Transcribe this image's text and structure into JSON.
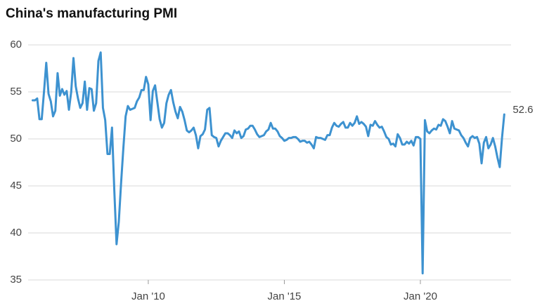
{
  "chart_data": {
    "type": "line",
    "title": "China's manufacturing PMI",
    "color": "#3d92d0",
    "grid": true,
    "ylim": [
      35,
      60
    ],
    "yticks": [
      35,
      40,
      45,
      50,
      55,
      60
    ],
    "xlim": [
      "2005-08",
      "2023-05"
    ],
    "xticks": [
      {
        "value": "2010-01",
        "label": "Jan '10"
      },
      {
        "value": "2015-01",
        "label": "Jan '15"
      },
      {
        "value": "2020-01",
        "label": "Jan '20"
      }
    ],
    "x": [
      "2005-10",
      "2005-11",
      "2005-12",
      "2006-01",
      "2006-02",
      "2006-03",
      "2006-04",
      "2006-05",
      "2006-06",
      "2006-07",
      "2006-08",
      "2006-09",
      "2006-10",
      "2006-11",
      "2006-12",
      "2007-01",
      "2007-02",
      "2007-03",
      "2007-04",
      "2007-05",
      "2007-06",
      "2007-07",
      "2007-08",
      "2007-09",
      "2007-10",
      "2007-11",
      "2007-12",
      "2008-01",
      "2008-02",
      "2008-03",
      "2008-04",
      "2008-05",
      "2008-06",
      "2008-07",
      "2008-08",
      "2008-09",
      "2008-10",
      "2008-11",
      "2008-12",
      "2009-01",
      "2009-02",
      "2009-03",
      "2009-04",
      "2009-05",
      "2009-06",
      "2009-07",
      "2009-08",
      "2009-09",
      "2009-10",
      "2009-11",
      "2009-12",
      "2010-01",
      "2010-02",
      "2010-03",
      "2010-04",
      "2010-05",
      "2010-06",
      "2010-07",
      "2010-08",
      "2010-09",
      "2010-10",
      "2010-11",
      "2010-12",
      "2011-01",
      "2011-02",
      "2011-03",
      "2011-04",
      "2011-05",
      "2011-06",
      "2011-07",
      "2011-08",
      "2011-09",
      "2011-10",
      "2011-11",
      "2011-12",
      "2012-01",
      "2012-02",
      "2012-03",
      "2012-04",
      "2012-05",
      "2012-06",
      "2012-07",
      "2012-08",
      "2012-09",
      "2012-10",
      "2012-11",
      "2012-12",
      "2013-01",
      "2013-02",
      "2013-03",
      "2013-04",
      "2013-05",
      "2013-06",
      "2013-07",
      "2013-08",
      "2013-09",
      "2013-10",
      "2013-11",
      "2013-12",
      "2014-01",
      "2014-02",
      "2014-03",
      "2014-04",
      "2014-05",
      "2014-06",
      "2014-07",
      "2014-08",
      "2014-09",
      "2014-10",
      "2014-11",
      "2014-12",
      "2015-01",
      "2015-02",
      "2015-03",
      "2015-04",
      "2015-05",
      "2015-06",
      "2015-07",
      "2015-08",
      "2015-09",
      "2015-10",
      "2015-11",
      "2015-12",
      "2016-01",
      "2016-02",
      "2016-03",
      "2016-04",
      "2016-05",
      "2016-06",
      "2016-07",
      "2016-08",
      "2016-09",
      "2016-10",
      "2016-11",
      "2016-12",
      "2017-01",
      "2017-02",
      "2017-03",
      "2017-04",
      "2017-05",
      "2017-06",
      "2017-07",
      "2017-08",
      "2017-09",
      "2017-10",
      "2017-11",
      "2017-12",
      "2018-01",
      "2018-02",
      "2018-03",
      "2018-04",
      "2018-05",
      "2018-06",
      "2018-07",
      "2018-08",
      "2018-09",
      "2018-10",
      "2018-11",
      "2018-12",
      "2019-01",
      "2019-02",
      "2019-03",
      "2019-04",
      "2019-05",
      "2019-06",
      "2019-07",
      "2019-08",
      "2019-09",
      "2019-10",
      "2019-11",
      "2019-12",
      "2020-01",
      "2020-02",
      "2020-03",
      "2020-04",
      "2020-05",
      "2020-06",
      "2020-07",
      "2020-08",
      "2020-09",
      "2020-10",
      "2020-11",
      "2020-12",
      "2021-01",
      "2021-02",
      "2021-03",
      "2021-04",
      "2021-05",
      "2021-06",
      "2021-07",
      "2021-08",
      "2021-09",
      "2021-10",
      "2021-11",
      "2021-12",
      "2022-01",
      "2022-02",
      "2022-03",
      "2022-04",
      "2022-05",
      "2022-06",
      "2022-07",
      "2022-08",
      "2022-09",
      "2022-10",
      "2022-11",
      "2022-12",
      "2023-01",
      "2023-02"
    ],
    "values": [
      54.1,
      54.1,
      54.3,
      52.1,
      52.1,
      55.0,
      58.1,
      54.8,
      54.0,
      52.4,
      53.0,
      57.0,
      54.6,
      55.3,
      54.7,
      55.1,
      53.1,
      55.0,
      58.6,
      55.6,
      54.3,
      53.3,
      53.8,
      56.1,
      53.1,
      55.4,
      55.3,
      53.0,
      53.8,
      58.3,
      59.2,
      53.3,
      52.0,
      48.4,
      48.4,
      51.2,
      44.6,
      38.8,
      41.2,
      45.3,
      49.0,
      52.4,
      53.5,
      53.1,
      53.2,
      53.3,
      54.0,
      54.4,
      55.2,
      55.2,
      56.6,
      55.8,
      52.0,
      55.1,
      55.7,
      53.9,
      52.1,
      51.2,
      51.7,
      53.8,
      54.7,
      55.2,
      53.9,
      52.9,
      52.2,
      53.4,
      52.9,
      52.0,
      50.9,
      50.7,
      50.9,
      51.2,
      50.4,
      49.0,
      50.3,
      50.5,
      51.0,
      53.1,
      53.3,
      50.4,
      50.2,
      50.1,
      49.2,
      49.8,
      50.2,
      50.6,
      50.6,
      50.4,
      50.1,
      50.9,
      50.6,
      50.8,
      50.1,
      50.3,
      51.0,
      51.1,
      51.4,
      51.4,
      51.0,
      50.5,
      50.2,
      50.3,
      50.4,
      50.8,
      51.0,
      51.7,
      51.1,
      51.1,
      50.8,
      50.3,
      50.1,
      49.8,
      49.9,
      50.1,
      50.1,
      50.2,
      50.2,
      50.0,
      49.7,
      49.8,
      49.8,
      49.6,
      49.7,
      49.4,
      49.0,
      50.2,
      50.1,
      50.1,
      50.0,
      49.9,
      50.4,
      50.4,
      51.2,
      51.7,
      51.4,
      51.3,
      51.6,
      51.8,
      51.2,
      51.2,
      51.7,
      51.4,
      51.7,
      52.4,
      51.6,
      51.8,
      51.6,
      51.3,
      50.3,
      51.5,
      51.4,
      51.9,
      51.5,
      51.2,
      51.3,
      50.8,
      50.2,
      50.0,
      49.4,
      49.5,
      49.2,
      50.5,
      50.1,
      49.4,
      49.4,
      49.7,
      49.5,
      49.8,
      49.3,
      50.2,
      50.2,
      50.0,
      35.7,
      52.0,
      50.8,
      50.6,
      50.9,
      51.1,
      51.0,
      51.5,
      51.4,
      52.1,
      51.9,
      51.3,
      50.6,
      51.9,
      51.1,
      51.0,
      50.9,
      50.4,
      50.1,
      49.6,
      49.2,
      50.1,
      50.3,
      50.1,
      50.2,
      49.5,
      47.4,
      49.6,
      50.2,
      49.0,
      49.4,
      50.1,
      49.2,
      48.0,
      47.0,
      50.1,
      52.6
    ]
  }
}
